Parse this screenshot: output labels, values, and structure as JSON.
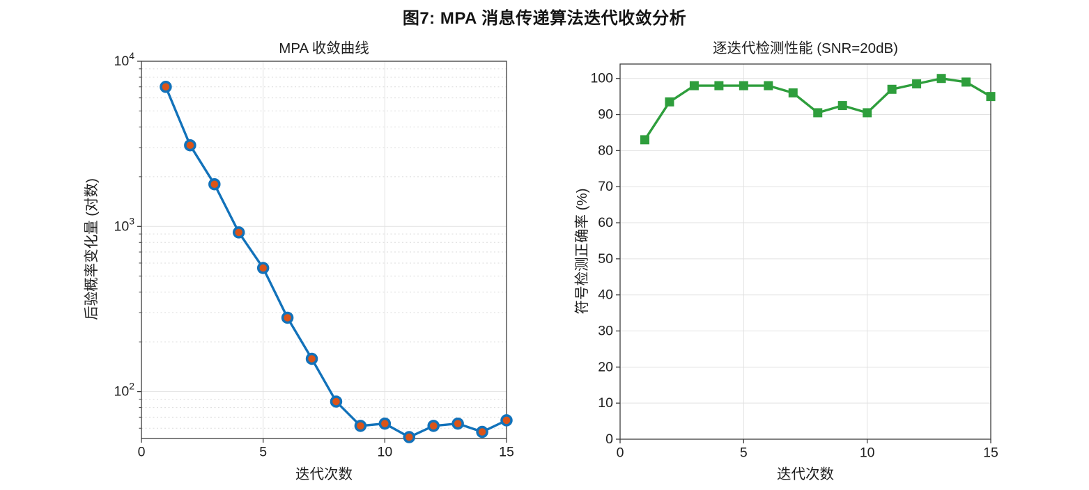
{
  "figure": {
    "suptitle": "图7: MPA 消息传递算法迭代收敛分析"
  },
  "chart_data": [
    {
      "type": "line",
      "title": "MPA 收敛曲线",
      "xlabel": "迭代次数",
      "ylabel": "后验概率变化量 (对数)",
      "x": [
        1,
        2,
        3,
        4,
        5,
        6,
        7,
        8,
        9,
        10,
        11,
        12,
        13,
        14,
        15
      ],
      "values": [
        7000,
        3100,
        1800,
        920,
        560,
        280,
        158,
        87,
        62,
        64,
        53,
        62,
        64,
        57,
        67
      ],
      "yscale": "log",
      "xlim": [
        0,
        15
      ],
      "ylim": [
        52,
        10000
      ],
      "xticks": [
        0,
        5,
        10,
        15
      ],
      "xtick_labels": [
        "0",
        "5",
        "10",
        "15"
      ],
      "yticks": [
        100,
        1000,
        10000
      ],
      "ytick_labels": [
        "10^2",
        "10^3",
        "10^4"
      ],
      "grid": "on",
      "minor_grid": "dashed",
      "legend": "none",
      "line_color": "#1272ba",
      "marker": "circle",
      "marker_fill": "#db5418"
    },
    {
      "type": "line",
      "title": "逐迭代检测性能 (SNR=20dB)",
      "xlabel": "迭代次数",
      "ylabel": "符号检测正确率 (%)",
      "x": [
        1,
        2,
        3,
        4,
        5,
        6,
        7,
        8,
        9,
        10,
        11,
        12,
        13,
        14,
        15
      ],
      "values": [
        83,
        93.5,
        98,
        98,
        98,
        98,
        96,
        90.5,
        92.5,
        90.5,
        97,
        98.5,
        100,
        99,
        95
      ],
      "yscale": "linear",
      "xlim": [
        0,
        15
      ],
      "ylim": [
        0,
        104
      ],
      "xticks": [
        0,
        5,
        10,
        15
      ],
      "xtick_labels": [
        "0",
        "5",
        "10",
        "15"
      ],
      "yticks": [
        0,
        10,
        20,
        30,
        40,
        50,
        60,
        70,
        80,
        90,
        100
      ],
      "ytick_labels": [
        "0",
        "10",
        "20",
        "30",
        "40",
        "50",
        "60",
        "70",
        "80",
        "90",
        "100"
      ],
      "grid": "on",
      "minor_grid": "none",
      "legend": "none",
      "line_color": "#2e9e3c",
      "marker": "square",
      "marker_fill": "#2e9e3c"
    }
  ]
}
